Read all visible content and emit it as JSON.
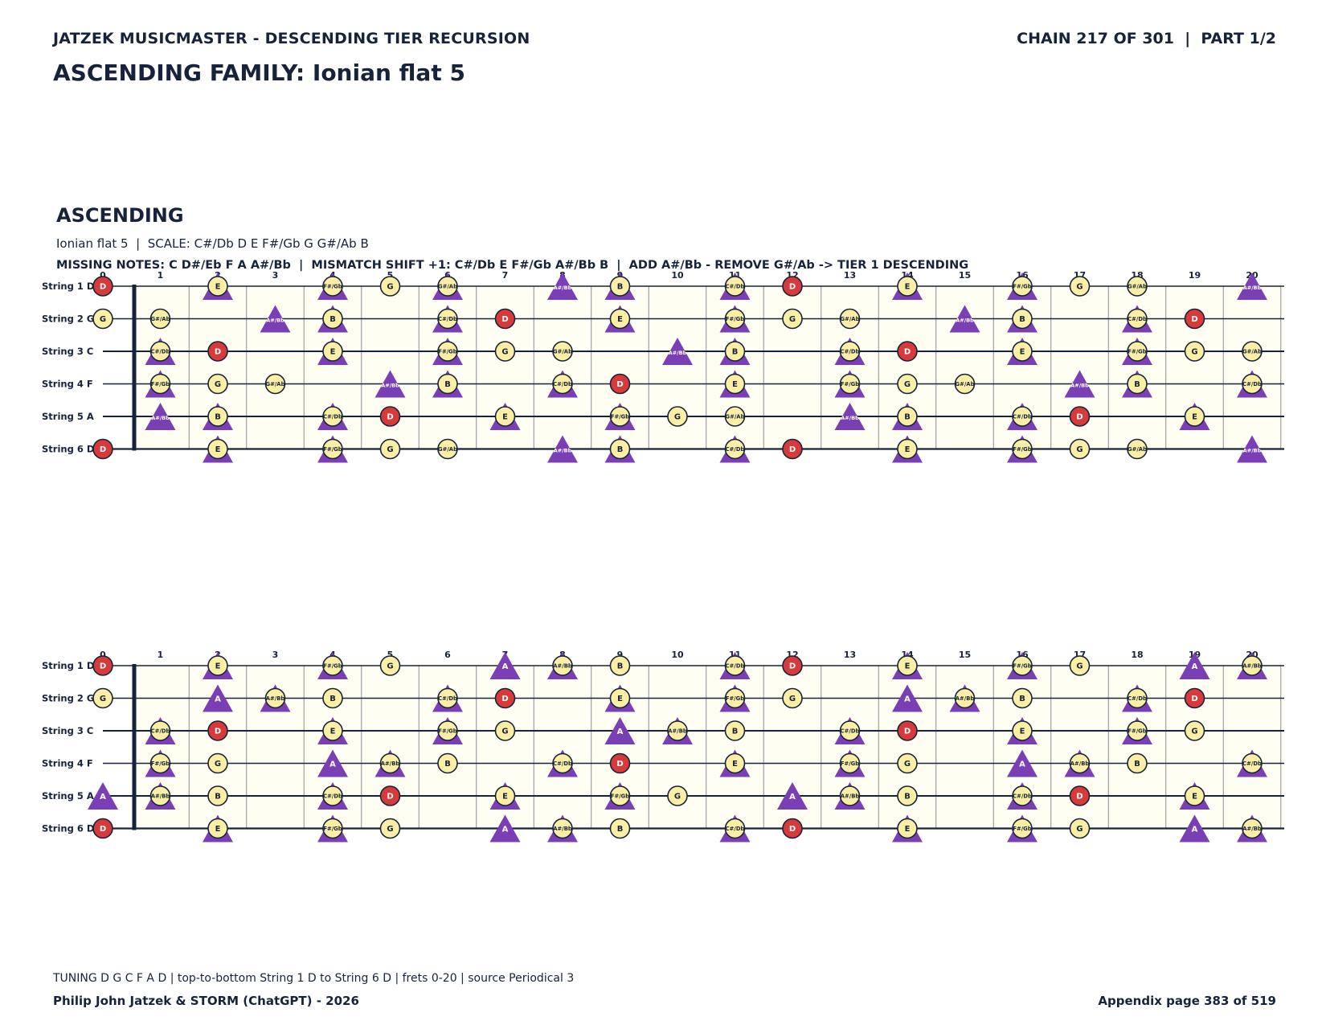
{
  "header": {
    "left": "JATZEK MUSICMASTER - DESCENDING TIER RECURSION",
    "right": "CHAIN 217 OF 301  |  PART 1/2"
  },
  "family_title": "ASCENDING FAMILY: Ionian flat 5",
  "section": {
    "title": "ASCENDING",
    "scale_line": "Ionian flat 5  |  SCALE: C#/Db D E F#/Gb G G#/Ab B",
    "missing_line": "MISSING NOTES: C D#/Eb F A A#/Bb  |  MISMATCH SHIFT +1: C#/Db E F#/Gb A#/Bb B  |  ADD A#/Bb - REMOVE G#/Ab -> TIER 1 DESCENDING"
  },
  "fretboard": {
    "string_labels": [
      "String 1 D",
      "String 2 G",
      "String 3 C",
      "String 4 F",
      "String 5 A",
      "String 6 D"
    ],
    "fret_numbers": [
      "0",
      "1",
      "2",
      "3",
      "4",
      "5",
      "6",
      "7",
      "8",
      "9",
      "10",
      "11",
      "12",
      "13",
      "14",
      "15",
      "16",
      "17",
      "18",
      "19",
      "20"
    ],
    "root_note": "D",
    "colors": {
      "root": "#d63a3a",
      "scale_note": "#fbefa6",
      "marker": "#7b3fb5",
      "paper": "#fffef2",
      "line": "#17233a"
    }
  },
  "diagrams": [
    {
      "name": "top",
      "strings": [
        [
          "D",
          "",
          "E",
          "",
          "F#/Gb",
          "G",
          "G#/Ab",
          "",
          "A#/Bb",
          "B",
          "",
          "C#/Db",
          "D",
          "",
          "E",
          "",
          "F#/Gb",
          "G",
          "G#/Ab",
          "",
          "A#/Bb"
        ],
        [
          "G",
          "G#/Ab",
          "",
          "A#/Bb",
          "B",
          "",
          "C#/Db",
          "D",
          "",
          "E",
          "",
          "F#/Gb",
          "G",
          "G#/Ab",
          "",
          "A#/Bb",
          "B",
          "",
          "C#/Db",
          "D",
          ""
        ],
        [
          "",
          "C#/Db",
          "D",
          "",
          "E",
          "",
          "F#/Gb",
          "G",
          "G#/Ab",
          "",
          "A#/Bb",
          "B",
          "",
          "C#/Db",
          "D",
          "",
          "E",
          "",
          "F#/Gb",
          "G",
          "G#/Ab"
        ],
        [
          "",
          "F#/Gb",
          "G",
          "G#/Ab",
          "",
          "A#/Bb",
          "B",
          "",
          "C#/Db",
          "D",
          "",
          "E",
          "",
          "F#/Gb",
          "G",
          "G#/Ab",
          "",
          "A#/Bb",
          "B",
          "",
          "C#/Db"
        ],
        [
          "",
          "A#/Bb",
          "B",
          "",
          "C#/Db",
          "D",
          "",
          "E",
          "",
          "F#/Gb",
          "G",
          "G#/Ab",
          "",
          "A#/Bb",
          "B",
          "",
          "C#/Db",
          "D",
          "",
          "E",
          ""
        ],
        [
          "D",
          "",
          "E",
          "",
          "F#/Gb",
          "G",
          "G#/Ab",
          "",
          "A#/Bb",
          "B",
          "",
          "C#/Db",
          "D",
          "",
          "E",
          "",
          "F#/Gb",
          "G",
          "G#/Ab",
          "",
          "A#/Bb"
        ]
      ],
      "markers": [
        [
          0,
          2
        ],
        [
          0,
          4
        ],
        [
          0,
          6
        ],
        [
          0,
          8
        ],
        [
          0,
          9
        ],
        [
          0,
          11
        ],
        [
          0,
          14
        ],
        [
          0,
          16
        ],
        [
          0,
          20
        ],
        [
          1,
          3
        ],
        [
          1,
          4
        ],
        [
          1,
          6
        ],
        [
          1,
          9
        ],
        [
          1,
          11
        ],
        [
          1,
          15
        ],
        [
          1,
          16
        ],
        [
          1,
          18
        ],
        [
          2,
          1
        ],
        [
          2,
          4
        ],
        [
          2,
          6
        ],
        [
          2,
          10
        ],
        [
          2,
          11
        ],
        [
          2,
          13
        ],
        [
          2,
          16
        ],
        [
          2,
          18
        ],
        [
          3,
          1
        ],
        [
          3,
          5
        ],
        [
          3,
          6
        ],
        [
          3,
          8
        ],
        [
          3,
          11
        ],
        [
          3,
          13
        ],
        [
          3,
          17
        ],
        [
          3,
          18
        ],
        [
          3,
          20
        ],
        [
          4,
          1
        ],
        [
          4,
          2
        ],
        [
          4,
          4
        ],
        [
          4,
          7
        ],
        [
          4,
          9
        ],
        [
          4,
          13
        ],
        [
          4,
          14
        ],
        [
          4,
          16
        ],
        [
          4,
          19
        ],
        [
          5,
          2
        ],
        [
          5,
          4
        ],
        [
          5,
          8
        ],
        [
          5,
          9
        ],
        [
          5,
          11
        ],
        [
          5,
          14
        ],
        [
          5,
          16
        ],
        [
          5,
          20
        ]
      ]
    },
    {
      "name": "bottom",
      "strings": [
        [
          "D",
          "",
          "E",
          "",
          "F#/Gb",
          "G",
          "",
          "A",
          "A#/Bb",
          "B",
          "",
          "C#/Db",
          "D",
          "",
          "E",
          "",
          "F#/Gb",
          "G",
          "",
          "A",
          "A#/Bb"
        ],
        [
          "G",
          "",
          "A",
          "A#/Bb",
          "B",
          "",
          "C#/Db",
          "D",
          "",
          "E",
          "",
          "F#/Gb",
          "G",
          "",
          "A",
          "A#/Bb",
          "B",
          "",
          "C#/Db",
          "D",
          ""
        ],
        [
          "",
          "C#/Db",
          "D",
          "",
          "E",
          "",
          "F#/Gb",
          "G",
          "",
          "A",
          "A#/Bb",
          "B",
          "",
          "C#/Db",
          "D",
          "",
          "E",
          "",
          "F#/Gb",
          "G",
          ""
        ],
        [
          "",
          "F#/Gb",
          "G",
          "",
          "A",
          "A#/Bb",
          "B",
          "",
          "C#/Db",
          "D",
          "",
          "E",
          "",
          "F#/Gb",
          "G",
          "",
          "A",
          "A#/Bb",
          "B",
          "",
          "C#/Db"
        ],
        [
          "A",
          "A#/Bb",
          "B",
          "",
          "C#/Db",
          "D",
          "",
          "E",
          "",
          "F#/Gb",
          "G",
          "",
          "A",
          "A#/Bb",
          "B",
          "",
          "C#/Db",
          "D",
          "",
          "E",
          ""
        ],
        [
          "D",
          "",
          "E",
          "",
          "F#/Gb",
          "G",
          "",
          "A",
          "A#/Bb",
          "B",
          "",
          "C#/Db",
          "D",
          "",
          "E",
          "",
          "F#/Gb",
          "G",
          "",
          "A",
          "A#/Bb"
        ]
      ],
      "markers": [
        [
          0,
          2
        ],
        [
          0,
          4
        ],
        [
          0,
          7
        ],
        [
          0,
          8
        ],
        [
          0,
          11
        ],
        [
          0,
          14
        ],
        [
          0,
          16
        ],
        [
          0,
          19
        ],
        [
          0,
          20
        ],
        [
          1,
          2
        ],
        [
          1,
          3
        ],
        [
          1,
          6
        ],
        [
          1,
          9
        ],
        [
          1,
          11
        ],
        [
          1,
          14
        ],
        [
          1,
          15
        ],
        [
          1,
          18
        ],
        [
          2,
          1
        ],
        [
          2,
          4
        ],
        [
          2,
          6
        ],
        [
          2,
          9
        ],
        [
          2,
          10
        ],
        [
          2,
          13
        ],
        [
          2,
          16
        ],
        [
          2,
          18
        ],
        [
          3,
          1
        ],
        [
          3,
          4
        ],
        [
          3,
          5
        ],
        [
          3,
          8
        ],
        [
          3,
          11
        ],
        [
          3,
          13
        ],
        [
          3,
          16
        ],
        [
          3,
          17
        ],
        [
          3,
          20
        ],
        [
          4,
          0
        ],
        [
          4,
          1
        ],
        [
          4,
          4
        ],
        [
          4,
          7
        ],
        [
          4,
          9
        ],
        [
          4,
          12
        ],
        [
          4,
          13
        ],
        [
          4,
          16
        ],
        [
          4,
          19
        ],
        [
          5,
          2
        ],
        [
          5,
          4
        ],
        [
          5,
          7
        ],
        [
          5,
          8
        ],
        [
          5,
          11
        ],
        [
          5,
          14
        ],
        [
          5,
          16
        ],
        [
          5,
          19
        ],
        [
          5,
          20
        ]
      ]
    }
  ],
  "footer": {
    "note": "TUNING D G C F A D | top-to-bottom String 1 D to String 6 D | frets 0-20 | source Periodical 3",
    "left": "Philip John Jatzek & STORM (ChatGPT) - 2026",
    "right": "Appendix page 383 of 519"
  }
}
